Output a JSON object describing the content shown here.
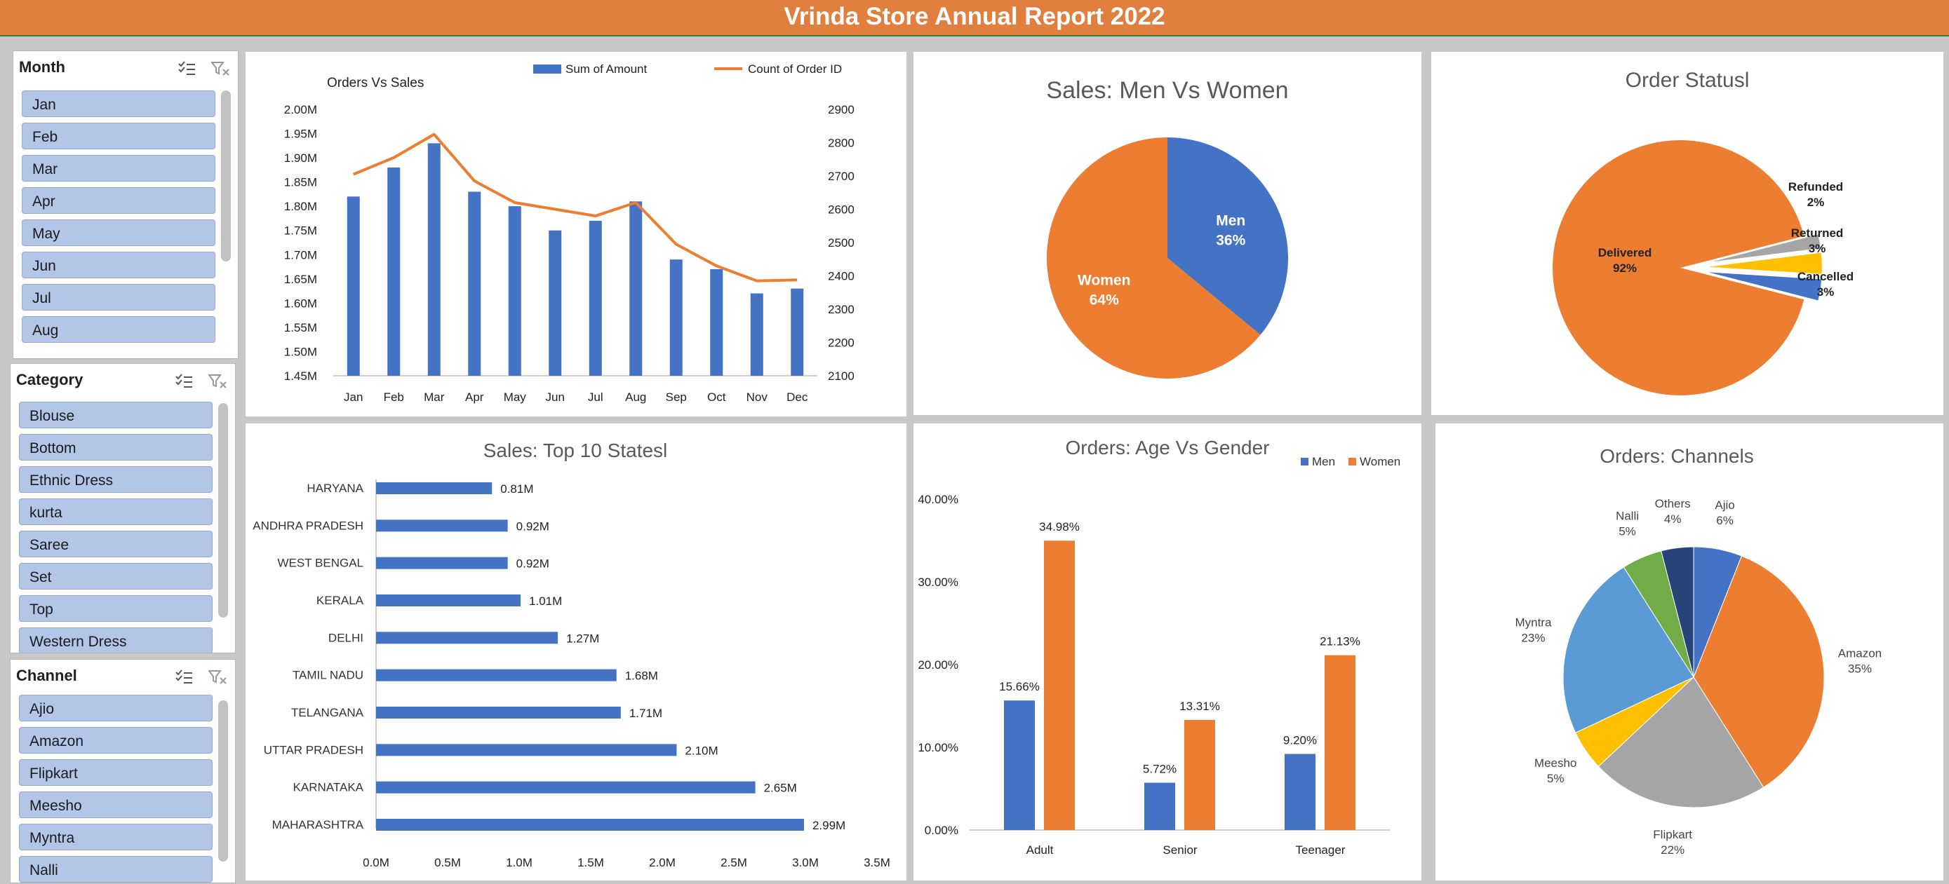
{
  "title": "Vrinda Store Annual Report 2022",
  "slicers": [
    {
      "title": "Month",
      "items": [
        "Jan",
        "Feb",
        "Mar",
        "Apr",
        "May",
        "Jun",
        "Jul",
        "Aug"
      ]
    },
    {
      "title": "Category",
      "items": [
        "Blouse",
        "Bottom",
        "Ethnic Dress",
        "kurta",
        "Saree",
        "Set",
        "Top",
        "Western Dress"
      ]
    },
    {
      "title": "Channel",
      "items": [
        "Ajio",
        "Amazon",
        "Flipkart",
        "Meesho",
        "Myntra",
        "Nalli"
      ]
    }
  ],
  "chart_data": [
    {
      "type": "bar",
      "title": "Orders Vs Sales",
      "categories": [
        "Jan",
        "Feb",
        "Mar",
        "Apr",
        "May",
        "Jun",
        "Jul",
        "Aug",
        "Sep",
        "Oct",
        "Nov",
        "Dec"
      ],
      "series": [
        {
          "name": "Sum of Amount",
          "type": "bar",
          "axis": "left",
          "color": "#4472c4",
          "values": [
            1.82,
            1.88,
            1.93,
            1.83,
            1.8,
            1.75,
            1.77,
            1.81,
            1.69,
            1.67,
            1.62,
            1.63
          ]
        },
        {
          "name": "Count of Order ID",
          "type": "line",
          "axis": "right",
          "color": "#ed7d31",
          "values": [
            2705,
            2755,
            2825,
            2685,
            2620,
            2600,
            2580,
            2620,
            2495,
            2430,
            2385,
            2388
          ]
        }
      ],
      "left_axis": {
        "ylim": [
          1.45,
          2.0
        ],
        "ticks": [
          "1.45M",
          "1.50M",
          "1.55M",
          "1.60M",
          "1.65M",
          "1.70M",
          "1.75M",
          "1.80M",
          "1.85M",
          "1.90M",
          "1.95M",
          "2.00M"
        ]
      },
      "right_axis": {
        "ylim": [
          2100,
          2900
        ],
        "ticks": [
          "2100",
          "2200",
          "2300",
          "2400",
          "2500",
          "2600",
          "2700",
          "2800",
          "2900"
        ]
      },
      "legend": "top"
    },
    {
      "type": "pie",
      "title": "Sales: Men Vs Women",
      "slices": [
        {
          "name": "Men",
          "label": "36%",
          "value": 36,
          "color": "#4472c4"
        },
        {
          "name": "Women",
          "label": "64%",
          "value": 64,
          "color": "#ed7d31"
        }
      ]
    },
    {
      "type": "pie",
      "title": "Order Statusl",
      "slices": [
        {
          "name": "Delivered",
          "label": "92%",
          "value": 92,
          "color": "#ed7d31"
        },
        {
          "name": "Refunded",
          "label": "2%",
          "value": 2,
          "color": "#a5a5a5"
        },
        {
          "name": "Returned",
          "label": "3%",
          "value": 3,
          "color": "#ffc000"
        },
        {
          "name": "Cancelled",
          "label": "3%",
          "value": 3,
          "color": "#4472c4"
        }
      ]
    },
    {
      "type": "bar",
      "orientation": "horizontal",
      "title": "Sales: Top 10 Statesl",
      "categories": [
        "HARYANA",
        "ANDHRA PRADESH",
        "WEST BENGAL",
        "KERALA",
        "DELHI",
        "TAMIL NADU",
        "TELANGANA",
        "UTTAR PRADESH",
        "KARNATAKA",
        "MAHARASHTRA"
      ],
      "values": [
        0.81,
        0.92,
        0.92,
        1.01,
        1.27,
        1.68,
        1.71,
        2.1,
        2.65,
        2.99
      ],
      "labels": [
        "0.81M",
        "0.92M",
        "0.92M",
        "1.01M",
        "1.27M",
        "1.68M",
        "1.71M",
        "2.10M",
        "2.65M",
        "2.99M"
      ],
      "xlim": [
        0,
        3.5
      ],
      "ticks": [
        "0.0M",
        "0.5M",
        "1.0M",
        "1.5M",
        "2.0M",
        "2.5M",
        "3.0M",
        "3.5M"
      ],
      "color": "#4472c4"
    },
    {
      "type": "bar",
      "title": "Orders: Age  Vs Gender",
      "categories": [
        "Adult",
        "Senior",
        "Teenager"
      ],
      "series": [
        {
          "name": "Men",
          "color": "#4472c4",
          "values": [
            15.66,
            5.72,
            9.2
          ],
          "labels": [
            "15.66%",
            "5.72%",
            "9.20%"
          ]
        },
        {
          "name": "Women",
          "color": "#ed7d31",
          "values": [
            34.98,
            13.31,
            21.13
          ],
          "labels": [
            "34.98%",
            "13.31%",
            "21.13%"
          ]
        }
      ],
      "ylim": [
        0,
        40
      ],
      "ticks": [
        "0.00%",
        "10.00%",
        "20.00%",
        "30.00%",
        "40.00%"
      ],
      "legend": "top-right"
    },
    {
      "type": "pie",
      "title": "Orders: Channels",
      "slices": [
        {
          "name": "Ajio",
          "label": "6%",
          "value": 6,
          "color": "#4472c4"
        },
        {
          "name": "Amazon",
          "label": "35%",
          "value": 35,
          "color": "#ed7d31"
        },
        {
          "name": "Flipkart",
          "label": "22%",
          "value": 22,
          "color": "#a5a5a5"
        },
        {
          "name": "Meesho",
          "label": "5%",
          "value": 5,
          "color": "#ffc000"
        },
        {
          "name": "Myntra",
          "label": "23%",
          "value": 23,
          "color": "#5b9bd5"
        },
        {
          "name": "Nalli",
          "label": "5%",
          "value": 5,
          "color": "#70ad47"
        },
        {
          "name": "Others",
          "label": "4%",
          "value": 4,
          "color": "#264478"
        }
      ]
    }
  ]
}
